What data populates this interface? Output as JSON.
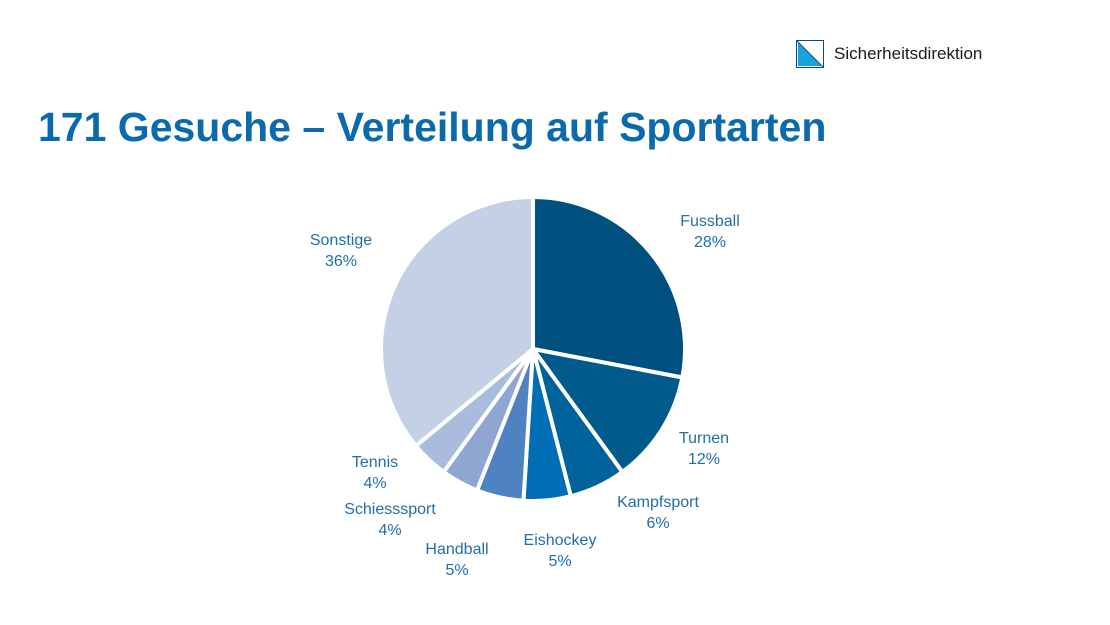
{
  "brand": {
    "name": "Sicherheitsdirektion",
    "logo_icon": "zurich-canton-flag-icon",
    "colors": {
      "light": "#1ba3dd",
      "dark": "#0a4c7e"
    }
  },
  "title": "171 Gesuche – Verteilung auf Sportarten",
  "chart_data": {
    "type": "pie",
    "title": "171 Gesuche – Verteilung auf Sportarten",
    "unit": "%",
    "slices": [
      {
        "label": "Fussball",
        "value": 28,
        "value_label": "28%",
        "color": "#00507f"
      },
      {
        "label": "Turnen",
        "value": 12,
        "value_label": "12%",
        "color": "#005a8c"
      },
      {
        "label": "Kampfsport",
        "value": 6,
        "value_label": "6%",
        "color": "#00629b"
      },
      {
        "label": "Eishockey",
        "value": 5,
        "value_label": "5%",
        "color": "#006eb5"
      },
      {
        "label": "Handball",
        "value": 5,
        "value_label": "5%",
        "color": "#4f82c0"
      },
      {
        "label": "Schiesssport",
        "value": 4,
        "value_label": "4%",
        "color": "#8ea6d1"
      },
      {
        "label": "Tennis",
        "value": 4,
        "value_label": "4%",
        "color": "#a9bcdd"
      },
      {
        "label": "Sonstige",
        "value": 36,
        "value_label": "36%",
        "color": "#c3d0e6"
      }
    ]
  }
}
